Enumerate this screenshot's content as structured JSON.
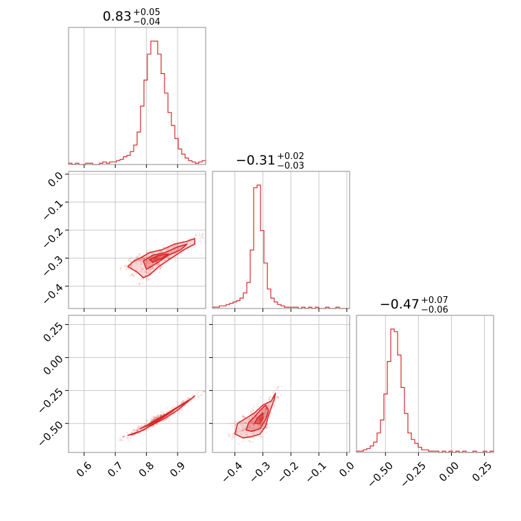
{
  "chart_data": {
    "type": "corner",
    "color": "#d62728",
    "grid": true,
    "parameters": [
      {
        "range": [
          0.55,
          0.99
        ],
        "ticks": [
          0.6,
          0.7,
          0.8,
          0.9
        ],
        "tick_labels": [
          "0.6",
          "0.7",
          "0.8",
          "0.9"
        ]
      },
      {
        "range": [
          -0.48,
          0.01
        ],
        "ticks": [
          -0.4,
          -0.3,
          -0.2,
          -0.1,
          0.0
        ],
        "tick_labels": [
          "−0.4",
          "−0.3",
          "−0.2",
          "−0.1",
          "0.0"
        ]
      },
      {
        "range": [
          -0.72,
          0.32
        ],
        "ticks": [
          -0.5,
          -0.25,
          0.0,
          0.25
        ],
        "tick_labels": [
          "−0.50",
          "−0.25",
          "0.00",
          "0.25"
        ]
      }
    ],
    "titles": [
      {
        "median": "0.83",
        "plus": "+0.05",
        "minus": "−0.04"
      },
      {
        "median": "−0.31",
        "plus": "+0.02",
        "minus": "−0.03"
      },
      {
        "median": "−0.47",
        "plus": "+0.07",
        "minus": "−0.06"
      }
    ],
    "histograms": [
      {
        "edges_range": [
          0.55,
          0.99
        ],
        "counts": [
          1,
          0,
          1,
          0,
          0,
          1,
          1,
          0,
          0,
          1,
          2,
          1,
          2,
          2,
          3,
          4,
          6,
          7,
          10,
          15,
          25,
          45,
          65,
          85,
          95,
          95,
          85,
          70,
          55,
          40,
          30,
          20,
          12,
          8,
          5,
          3,
          2,
          1,
          2,
          3
        ]
      },
      {
        "edges_range": [
          -0.48,
          0.01
        ],
        "counts": [
          1,
          1,
          2,
          2,
          3,
          4,
          5,
          6,
          8,
          12,
          20,
          45,
          93,
          95,
          60,
          35,
          15,
          8,
          5,
          3,
          2,
          1,
          1,
          1,
          1,
          0,
          1,
          0,
          1,
          0,
          1,
          0,
          0,
          1,
          0,
          0,
          1,
          0,
          0,
          0
        ]
      },
      {
        "edges_range": [
          -0.72,
          0.32
        ],
        "counts": [
          1,
          1,
          2,
          3,
          5,
          8,
          15,
          25,
          45,
          70,
          95,
          93,
          75,
          50,
          30,
          15,
          10,
          7,
          4,
          2,
          2,
          1,
          1,
          1,
          0,
          1,
          0,
          1,
          0,
          1,
          0,
          1,
          0,
          0,
          1,
          0,
          0,
          1,
          0,
          1
        ]
      }
    ],
    "pairs": [
      {
        "x_param": 0,
        "y_param": 1,
        "contours": [
          [
            [
              0.76,
              -0.31
            ],
            [
              0.78,
              -0.3
            ],
            [
              0.81,
              -0.28
            ],
            [
              0.85,
              -0.27
            ],
            [
              0.89,
              -0.25
            ],
            [
              0.93,
              -0.24
            ],
            [
              0.955,
              -0.23
            ],
            [
              0.955,
              -0.25
            ],
            [
              0.92,
              -0.27
            ],
            [
              0.88,
              -0.3
            ],
            [
              0.84,
              -0.33
            ],
            [
              0.81,
              -0.36
            ],
            [
              0.79,
              -0.37
            ],
            [
              0.77,
              -0.35
            ],
            [
              0.74,
              -0.33
            ],
            [
              0.76,
              -0.31
            ]
          ],
          [
            [
              0.79,
              -0.31
            ],
            [
              0.82,
              -0.29
            ],
            [
              0.86,
              -0.28
            ],
            [
              0.9,
              -0.26
            ],
            [
              0.93,
              -0.25
            ],
            [
              0.91,
              -0.27
            ],
            [
              0.87,
              -0.29
            ],
            [
              0.83,
              -0.32
            ],
            [
              0.8,
              -0.34
            ],
            [
              0.79,
              -0.31
            ]
          ],
          [
            [
              0.81,
              -0.305
            ],
            [
              0.84,
              -0.29
            ],
            [
              0.87,
              -0.285
            ],
            [
              0.85,
              -0.3
            ],
            [
              0.82,
              -0.315
            ],
            [
              0.81,
              -0.305
            ]
          ]
        ],
        "center": [
          0.83,
          -0.3
        ]
      },
      {
        "x_param": 0,
        "y_param": 2,
        "contours": [
          [
            [
              0.74,
              -0.59
            ],
            [
              0.78,
              -0.56
            ],
            [
              0.82,
              -0.51
            ],
            [
              0.86,
              -0.46
            ],
            [
              0.9,
              -0.4
            ],
            [
              0.93,
              -0.34
            ],
            [
              0.955,
              -0.29
            ],
            [
              0.945,
              -0.31
            ],
            [
              0.91,
              -0.36
            ],
            [
              0.87,
              -0.43
            ],
            [
              0.83,
              -0.49
            ],
            [
              0.79,
              -0.55
            ],
            [
              0.76,
              -0.58
            ],
            [
              0.74,
              -0.59
            ]
          ],
          [
            [
              0.78,
              -0.54
            ],
            [
              0.82,
              -0.49
            ],
            [
              0.86,
              -0.44
            ],
            [
              0.9,
              -0.38
            ],
            [
              0.92,
              -0.35
            ],
            [
              0.89,
              -0.39
            ],
            [
              0.85,
              -0.45
            ],
            [
              0.81,
              -0.51
            ],
            [
              0.78,
              -0.54
            ]
          ],
          [
            [
              0.81,
              -0.5
            ],
            [
              0.84,
              -0.46
            ],
            [
              0.87,
              -0.42
            ],
            [
              0.85,
              -0.45
            ],
            [
              0.82,
              -0.49
            ],
            [
              0.81,
              -0.5
            ]
          ]
        ],
        "center": [
          0.83,
          -0.47
        ]
      },
      {
        "x_param": 1,
        "y_param": 2,
        "contours": [
          [
            [
              -0.4,
              -0.58
            ],
            [
              -0.39,
              -0.5
            ],
            [
              -0.36,
              -0.46
            ],
            [
              -0.33,
              -0.42
            ],
            [
              -0.3,
              -0.36
            ],
            [
              -0.27,
              -0.33
            ],
            [
              -0.255,
              -0.27
            ],
            [
              -0.26,
              -0.32
            ],
            [
              -0.27,
              -0.38
            ],
            [
              -0.28,
              -0.44
            ],
            [
              -0.29,
              -0.52
            ],
            [
              -0.31,
              -0.58
            ],
            [
              -0.34,
              -0.6
            ],
            [
              -0.37,
              -0.61
            ],
            [
              -0.4,
              -0.58
            ]
          ],
          [
            [
              -0.36,
              -0.55
            ],
            [
              -0.35,
              -0.49
            ],
            [
              -0.33,
              -0.45
            ],
            [
              -0.31,
              -0.4
            ],
            [
              -0.29,
              -0.36
            ],
            [
              -0.28,
              -0.4
            ],
            [
              -0.29,
              -0.47
            ],
            [
              -0.31,
              -0.54
            ],
            [
              -0.34,
              -0.56
            ],
            [
              -0.36,
              -0.55
            ]
          ],
          [
            [
              -0.33,
              -0.5
            ],
            [
              -0.32,
              -0.46
            ],
            [
              -0.3,
              -0.42
            ],
            [
              -0.3,
              -0.46
            ],
            [
              -0.31,
              -0.5
            ],
            [
              -0.33,
              -0.5
            ]
          ]
        ],
        "center": [
          -0.31,
          -0.47
        ]
      }
    ]
  }
}
